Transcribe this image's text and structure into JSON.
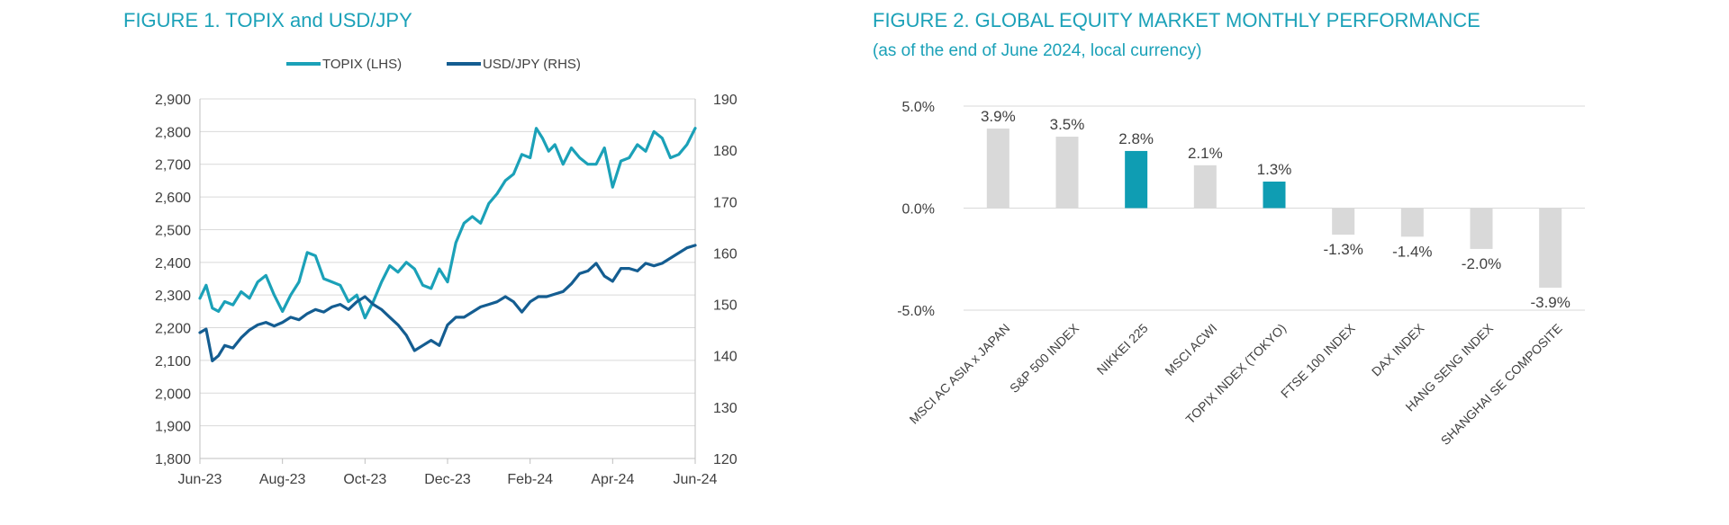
{
  "figure1": {
    "title": "FIGURE 1. TOPIX and USD/JPY"
  },
  "figure2": {
    "title": "FIGURE 2. GLOBAL EQUITY MARKET MONTHLY PERFORMANCE",
    "subtitle": "(as of the end of June 2024, local currency)"
  },
  "colors": {
    "topix": "#1ba1b8",
    "usdjpy": "#145d91",
    "bar_grey": "#d9d9d9",
    "bar_highlight": "#0f9db3",
    "grid": "#d9d9d9",
    "axis": "#bfbfbf"
  },
  "chart_data": [
    {
      "type": "line",
      "title": "FIGURE 1. TOPIX and USD/JPY",
      "x_ticks": [
        "Jun-23",
        "Aug-23",
        "Oct-23",
        "Dec-23",
        "Feb-24",
        "Apr-24",
        "Jun-24"
      ],
      "x_range": [
        0,
        12
      ],
      "y_left": {
        "ticks": [
          "1,800",
          "1,900",
          "2,000",
          "2,100",
          "2,200",
          "2,300",
          "2,400",
          "2,500",
          "2,600",
          "2,700",
          "2,800",
          "2,900"
        ],
        "range": [
          1800,
          2900
        ]
      },
      "y_right": {
        "ticks": [
          "120",
          "130",
          "140",
          "150",
          "160",
          "170",
          "180",
          "190"
        ],
        "range": [
          120,
          190
        ]
      },
      "legend": "top-center",
      "grid": true,
      "series": [
        {
          "name": "TOPIX (LHS)",
          "axis": "left",
          "color": "#1ba1b8",
          "x": [
            0,
            0.15,
            0.3,
            0.45,
            0.6,
            0.8,
            1.0,
            1.2,
            1.4,
            1.6,
            1.8,
            2.0,
            2.2,
            2.4,
            2.6,
            2.8,
            3.0,
            3.2,
            3.4,
            3.6,
            3.8,
            4.0,
            4.2,
            4.4,
            4.6,
            4.8,
            5.0,
            5.2,
            5.4,
            5.6,
            5.8,
            6.0,
            6.2,
            6.4,
            6.6,
            6.8,
            7.0,
            7.2,
            7.4,
            7.6,
            7.8,
            8.0,
            8.15,
            8.3,
            8.45,
            8.6,
            8.8,
            9.0,
            9.2,
            9.4,
            9.6,
            9.8,
            10.0,
            10.2,
            10.4,
            10.6,
            10.8,
            11.0,
            11.2,
            11.4,
            11.6,
            11.8,
            12.0
          ],
          "y": [
            2290,
            2330,
            2260,
            2250,
            2280,
            2270,
            2310,
            2290,
            2340,
            2360,
            2300,
            2250,
            2300,
            2340,
            2430,
            2420,
            2350,
            2340,
            2330,
            2280,
            2300,
            2230,
            2280,
            2340,
            2390,
            2370,
            2400,
            2380,
            2330,
            2320,
            2380,
            2340,
            2460,
            2520,
            2540,
            2520,
            2580,
            2610,
            2650,
            2670,
            2730,
            2720,
            2810,
            2780,
            2740,
            2760,
            2700,
            2750,
            2720,
            2700,
            2700,
            2750,
            2630,
            2710,
            2720,
            2760,
            2740,
            2800,
            2780,
            2720,
            2730,
            2760,
            2810
          ]
        },
        {
          "name": "USD/JPY (RHS)",
          "axis": "right",
          "color": "#145d91",
          "x": [
            0,
            0.15,
            0.3,
            0.45,
            0.6,
            0.8,
            1.0,
            1.2,
            1.4,
            1.6,
            1.8,
            2.0,
            2.2,
            2.4,
            2.6,
            2.8,
            3.0,
            3.2,
            3.4,
            3.6,
            3.8,
            4.0,
            4.2,
            4.4,
            4.6,
            4.8,
            5.0,
            5.2,
            5.4,
            5.6,
            5.8,
            6.0,
            6.2,
            6.4,
            6.6,
            6.8,
            7.0,
            7.2,
            7.4,
            7.6,
            7.8,
            8.0,
            8.2,
            8.4,
            8.6,
            8.8,
            9.0,
            9.2,
            9.4,
            9.6,
            9.8,
            10.0,
            10.2,
            10.4,
            10.6,
            10.8,
            11.0,
            11.2,
            11.4,
            11.6,
            11.8,
            12.0
          ],
          "y": [
            144.5,
            145.2,
            139.0,
            140.0,
            142.0,
            141.5,
            143.5,
            145.0,
            146.0,
            146.5,
            145.8,
            146.5,
            147.5,
            147.0,
            148.2,
            149.0,
            148.5,
            149.5,
            150.0,
            149.0,
            150.5,
            151.5,
            150.0,
            149.0,
            147.5,
            146.0,
            144.0,
            141.0,
            142.0,
            143.0,
            142.0,
            146.0,
            147.5,
            147.5,
            148.5,
            149.5,
            150.0,
            150.5,
            151.5,
            150.5,
            148.5,
            150.5,
            151.5,
            151.5,
            152.0,
            152.5,
            154.0,
            156.0,
            156.5,
            158.0,
            155.5,
            154.5,
            157.0,
            157.0,
            156.5,
            158.0,
            157.5,
            158.0,
            159.0,
            160.0,
            161.0,
            161.5
          ]
        }
      ]
    },
    {
      "type": "bar",
      "title": "FIGURE 2. GLOBAL EQUITY MARKET MONTHLY PERFORMANCE",
      "subtitle": "(as of the end of June 2024, local currency)",
      "categories": [
        "MSCI AC ASIA x JAPAN",
        "S&P 500 INDEX",
        "NIKKEI 225",
        "MSCI ACWI",
        "TOPIX INDEX (TOKYO)",
        "FTSE 100 INDEX",
        "DAX INDEX",
        "HANG SENG INDEX",
        "SHANGHAI SE COMPOSITE"
      ],
      "values": [
        3.9,
        3.5,
        2.8,
        2.1,
        1.3,
        -1.3,
        -1.4,
        -2.0,
        -3.9
      ],
      "data_labels": [
        "3.9%",
        "3.5%",
        "2.8%",
        "2.1%",
        "1.3%",
        "-1.3%",
        "-1.4%",
        "-2.0%",
        "-3.9%"
      ],
      "highlight": [
        false,
        false,
        true,
        false,
        true,
        false,
        false,
        false,
        false
      ],
      "y_ticks": [
        5.0,
        0.0,
        -5.0
      ],
      "y_tick_labels": [
        "5.0%",
        "0.0%",
        "-5.0%"
      ],
      "ylim": [
        -5,
        5
      ],
      "grid": true
    }
  ]
}
